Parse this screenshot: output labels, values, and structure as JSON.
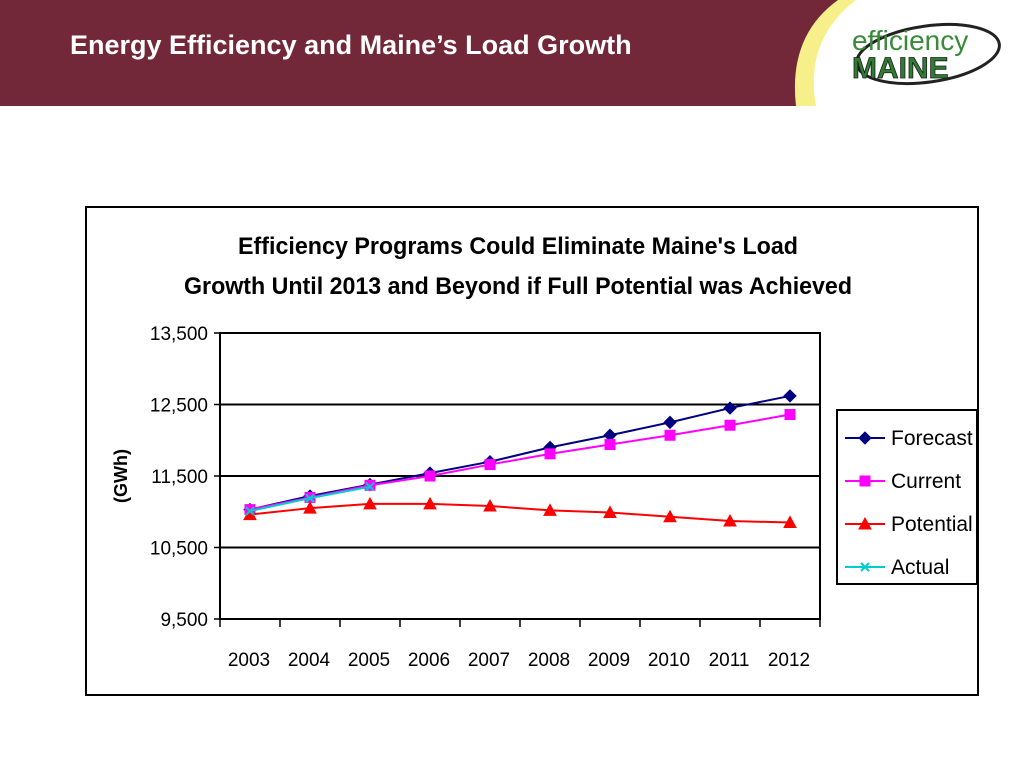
{
  "slide": {
    "title": "Energy Efficiency and Maine’s Load Growth"
  },
  "logo": {
    "line1": "efficiency",
    "line2": "MAINE"
  },
  "chart_data": {
    "type": "line",
    "title_lines": [
      "Efficiency Programs Could Eliminate Maine's Load",
      "Growth Until 2013 and Beyond if Full Potential was Achieved"
    ],
    "ylabel": "(GWh)",
    "xlabel": "",
    "categories": [
      "2003",
      "2004",
      "2005",
      "2006",
      "2007",
      "2008",
      "2009",
      "2010",
      "2011",
      "2012"
    ],
    "ylim": [
      9500,
      13500
    ],
    "yticks": [
      9500,
      10500,
      11500,
      12500,
      13500
    ],
    "ytick_labels": [
      "9,500",
      "10,500",
      "11,500",
      "12,500",
      "13,500"
    ],
    "grid": "horizontal",
    "legend_position": "right",
    "series": [
      {
        "name": "Forecast",
        "color": "#000080",
        "marker": "diamond",
        "values": [
          11030,
          11220,
          11380,
          11540,
          11700,
          11900,
          12070,
          12250,
          12450,
          12620
        ]
      },
      {
        "name": "Current",
        "color": "#ff00ff",
        "marker": "square",
        "values": [
          11030,
          11200,
          11370,
          11500,
          11660,
          11810,
          11940,
          12070,
          12210,
          12360
        ]
      },
      {
        "name": "Potential",
        "color": "#ff0000",
        "marker": "triangle",
        "values": [
          10960,
          11050,
          11110,
          11110,
          11080,
          11020,
          10990,
          10930,
          10870,
          10850
        ]
      },
      {
        "name": "Actual",
        "color": "#00cccc",
        "marker": "x",
        "values": [
          11010,
          11190,
          11350,
          null,
          null,
          null,
          null,
          null,
          null,
          null
        ]
      }
    ]
  }
}
